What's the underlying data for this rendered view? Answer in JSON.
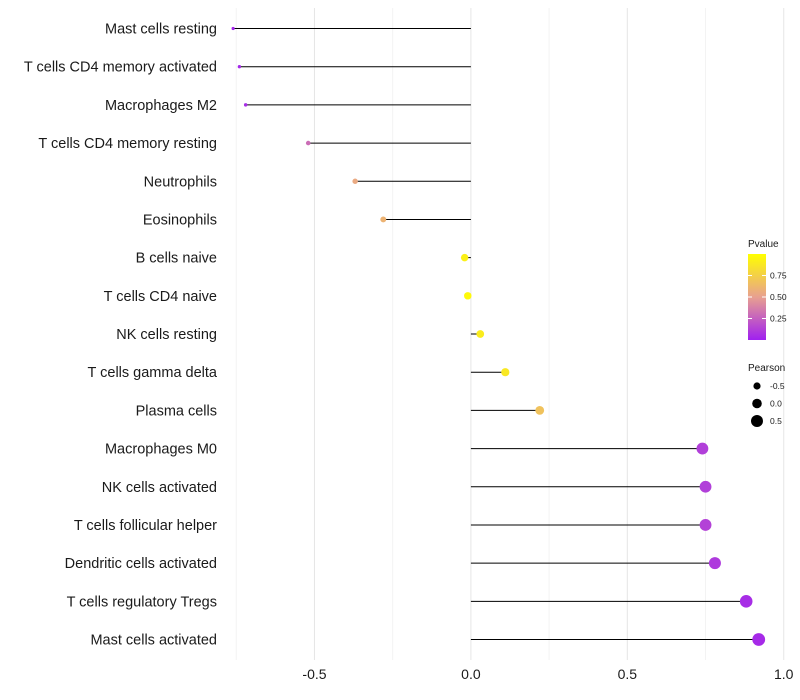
{
  "chart_data": {
    "type": "lollipop",
    "title": "",
    "xlabel": "",
    "ylabel": "",
    "xlim": [
      -0.77,
      1.02
    ],
    "xticks": [
      -0.5,
      0.0,
      0.5,
      1.0
    ],
    "xtick_labels": [
      "-0.5",
      "0.0",
      "0.5",
      "1.0"
    ],
    "grid": true,
    "categories": [
      "Mast cells resting",
      "T cells CD4 memory activated",
      "Macrophages M2",
      "T cells CD4 memory resting",
      "Neutrophils",
      "Eosinophils",
      "B cells naive",
      "T cells CD4 naive",
      "NK cells resting",
      "T cells gamma delta",
      "Plasma cells",
      "Macrophages M0",
      "NK cells activated",
      "T cells follicular helper",
      "Dendritic cells activated",
      "T cells regulatory  Tregs ",
      "Mast cells activated"
    ],
    "pearson": [
      -0.76,
      -0.74,
      -0.72,
      -0.52,
      -0.37,
      -0.28,
      -0.02,
      -0.01,
      0.03,
      0.11,
      0.22,
      0.74,
      0.75,
      0.75,
      0.78,
      0.88,
      0.92
    ],
    "pvalue": [
      0.02,
      0.03,
      0.05,
      0.3,
      0.55,
      0.6,
      0.92,
      0.97,
      0.9,
      0.88,
      0.68,
      0.12,
      0.12,
      0.13,
      0.1,
      0.05,
      0.04
    ],
    "color_legend": {
      "title": "Pvalue",
      "ticks": [
        0.75,
        0.5,
        0.25
      ],
      "tick_labels": [
        "0.75",
        "0.50",
        "0.25"
      ],
      "range": [
        0.0,
        1.0
      ],
      "low_color": "#a020f0",
      "mid_color": "#e8a090",
      "high_color": "#ffff00"
    },
    "size_legend": {
      "title": "Pearson",
      "values": [
        -0.5,
        0.0,
        0.5
      ],
      "labels": [
        "-0.5",
        "0.0",
        "0.5"
      ]
    }
  }
}
